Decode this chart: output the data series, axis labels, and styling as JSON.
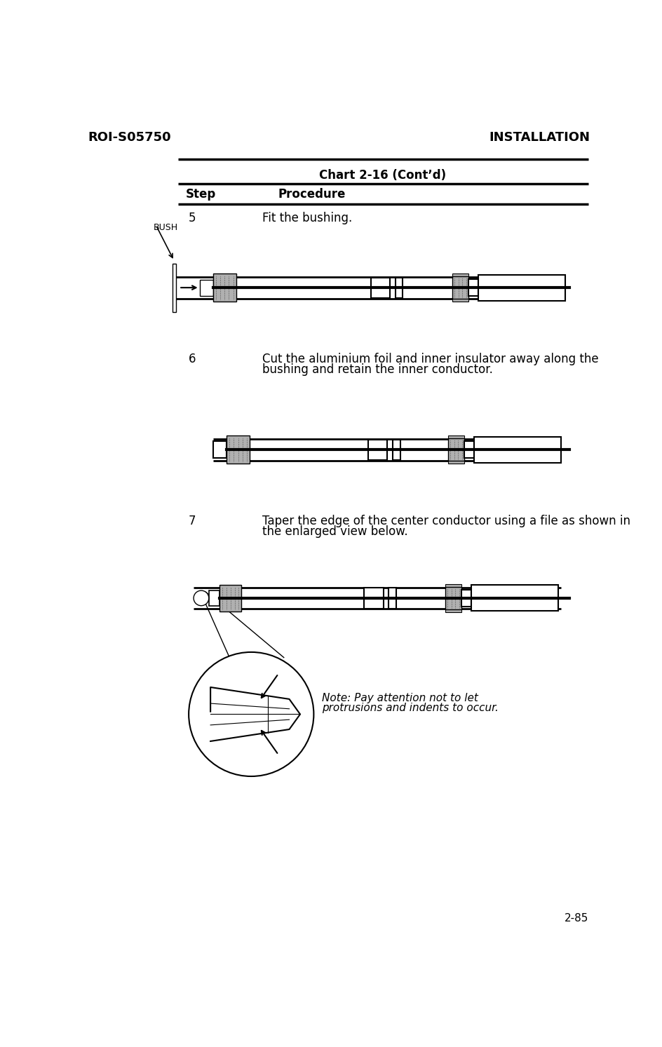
{
  "header_left": "ROI-S05750",
  "header_right": "INSTALLATION",
  "chart_title": "Chart 2-16 (Cont’d)",
  "col_step": "Step",
  "col_procedure": "Procedure",
  "step5_num": "5",
  "step5_text": "Fit the bushing.",
  "step6_num": "6",
  "step6_line1": "Cut the aluminium foil and inner insulator away along the",
  "step6_line2": "bushing and retain the inner conductor.",
  "step7_num": "7",
  "step7_line1": "Taper the edge of the center conductor using a file as shown in",
  "step7_line2": "the enlarged view below.",
  "bush_label": "BUSH",
  "note_line1": "Note: Pay attention not to let",
  "note_line2": "protrusions and indents to occur.",
  "footer": "2-85",
  "bg_color": "#ffffff",
  "black": "#000000",
  "gray": "#b0b0b0",
  "darkgray": "#888888"
}
